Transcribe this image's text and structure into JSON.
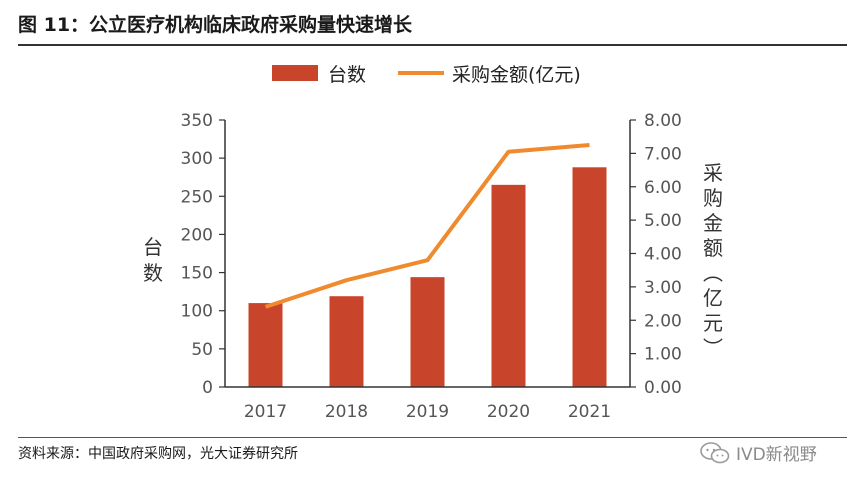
{
  "header": {
    "title": "图 11：公立医疗机构临床政府采购量快速增长"
  },
  "footer": {
    "source": "资料来源：中国政府采购网，光大证券研究所",
    "watermark": "IVD新视野"
  },
  "colors": {
    "bar": "#c8442a",
    "line": "#ef8a2e",
    "axis": "#333333",
    "tick_text": "#555555"
  },
  "chart_data": {
    "type": "bar",
    "categories": [
      "2017",
      "2018",
      "2019",
      "2020",
      "2021"
    ],
    "series": [
      {
        "name": "台数",
        "kind": "bar",
        "axis": "left",
        "values": [
          110,
          119,
          144,
          265,
          288
        ]
      },
      {
        "name": "采购金额(亿元)",
        "kind": "line",
        "axis": "right",
        "values": [
          2.4,
          3.2,
          3.8,
          7.05,
          7.25
        ]
      }
    ],
    "ylabel": "台数",
    "y2label": "采购金额(亿元)",
    "ylim": [
      0,
      350
    ],
    "y2lim": [
      0,
      8
    ],
    "yticks": [
      "0",
      "50",
      "100",
      "150",
      "200",
      "250",
      "300",
      "350"
    ],
    "y2ticks": [
      "0.00",
      "1.00",
      "2.00",
      "3.00",
      "4.00",
      "5.00",
      "6.00",
      "7.00",
      "8.00"
    ],
    "legend_position": "top",
    "grid": false
  }
}
